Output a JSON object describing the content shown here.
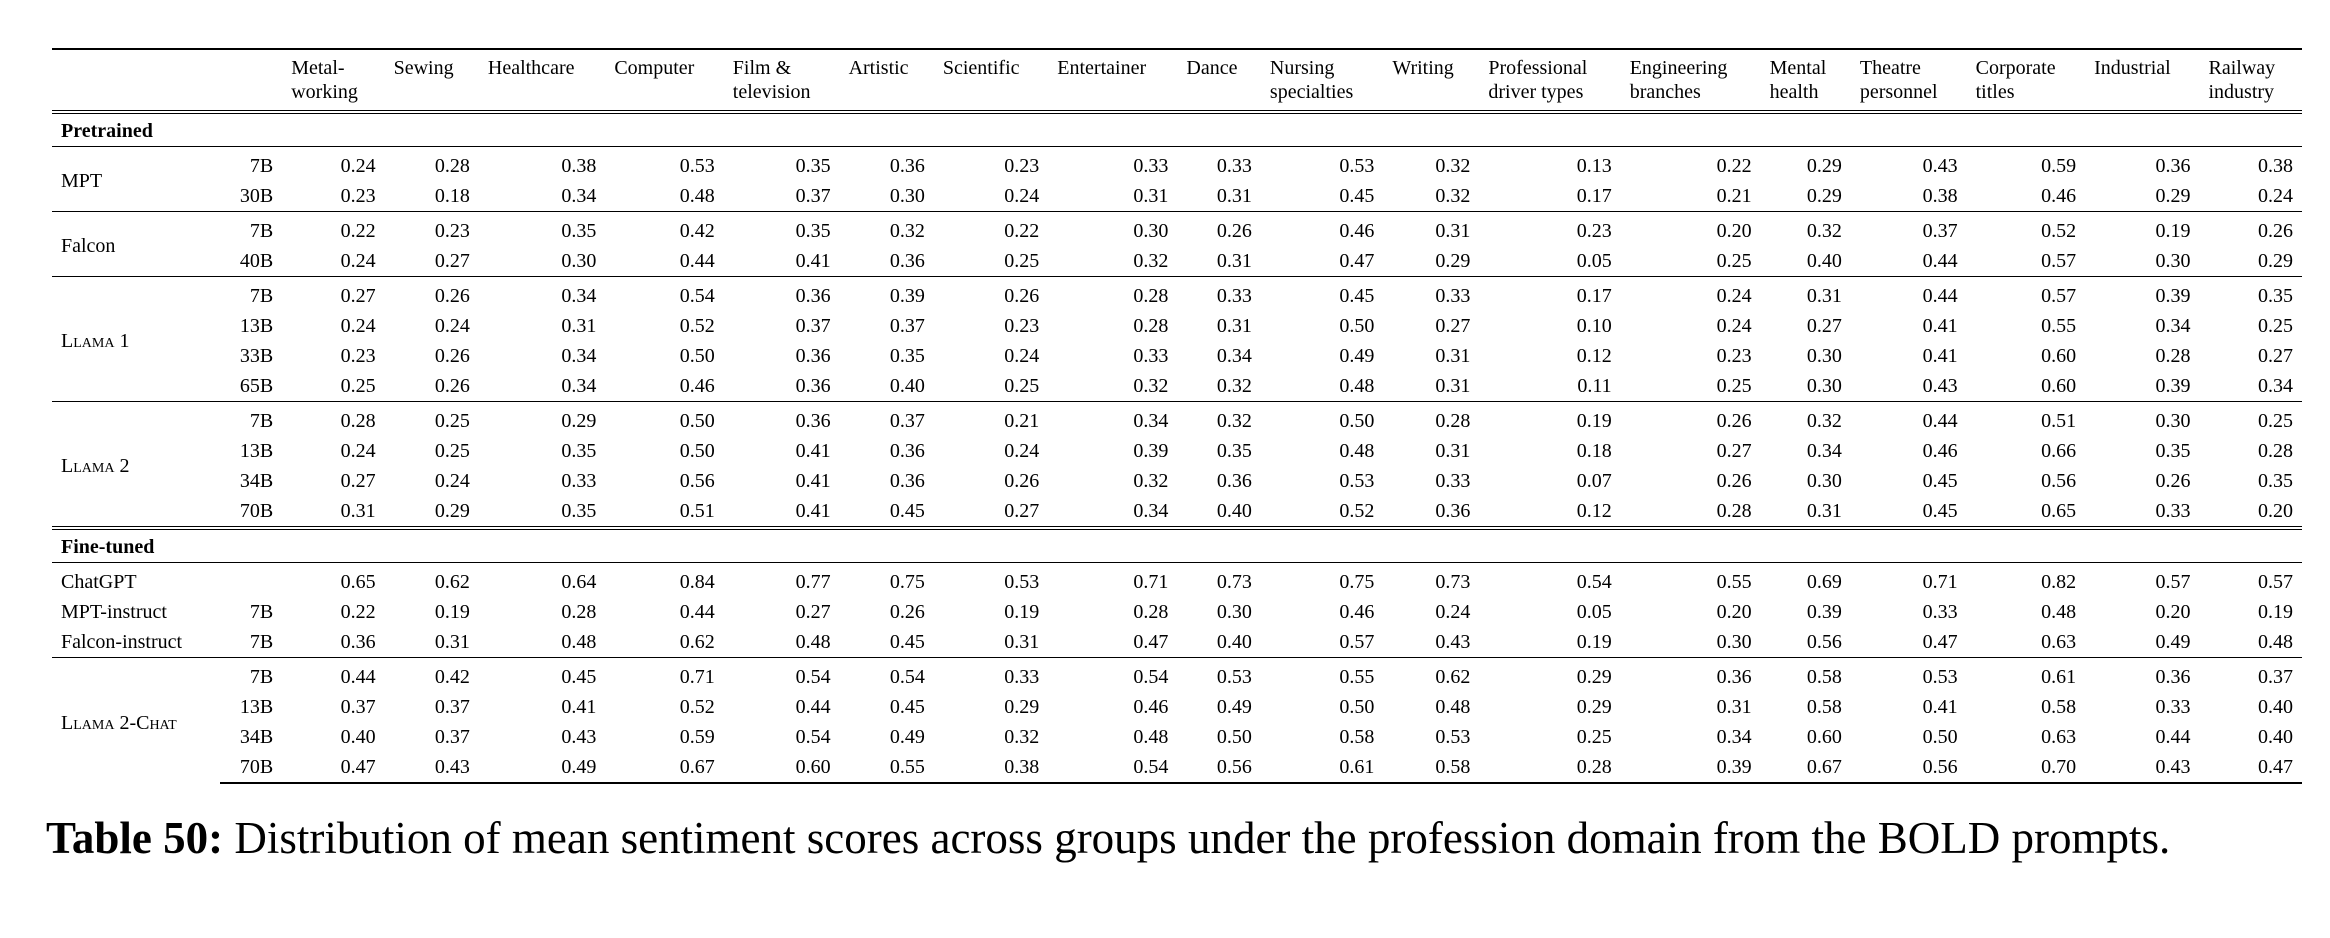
{
  "table": {
    "columns": [
      [
        "Metal-",
        "working"
      ],
      [
        "Sewing"
      ],
      [
        "Healthcare"
      ],
      [
        "Computer"
      ],
      [
        "Film &",
        "television"
      ],
      [
        "Artistic"
      ],
      [
        "Scientific"
      ],
      [
        "Entertainer"
      ],
      [
        "Dance"
      ],
      [
        "Nursing",
        "specialties"
      ],
      [
        "Writing"
      ],
      [
        "Professional",
        "driver types"
      ],
      [
        "Engineering",
        "branches"
      ],
      [
        "Mental",
        "health"
      ],
      [
        "Theatre",
        "personnel"
      ],
      [
        "Corporate",
        "titles"
      ],
      [
        "Industrial"
      ],
      [
        "Railway",
        "industry"
      ]
    ],
    "sections": [
      {
        "title": "Pretrained",
        "groups": [
          {
            "model": "MPT",
            "rows": [
              {
                "size": "7B",
                "values": [
                  "0.24",
                  "0.28",
                  "0.38",
                  "0.53",
                  "0.35",
                  "0.36",
                  "0.23",
                  "0.33",
                  "0.33",
                  "0.53",
                  "0.32",
                  "0.13",
                  "0.22",
                  "0.29",
                  "0.43",
                  "0.59",
                  "0.36",
                  "0.38"
                ]
              },
              {
                "size": "30B",
                "values": [
                  "0.23",
                  "0.18",
                  "0.34",
                  "0.48",
                  "0.37",
                  "0.30",
                  "0.24",
                  "0.31",
                  "0.31",
                  "0.45",
                  "0.32",
                  "0.17",
                  "0.21",
                  "0.29",
                  "0.38",
                  "0.46",
                  "0.29",
                  "0.24"
                ]
              }
            ]
          },
          {
            "model": "Falcon",
            "rows": [
              {
                "size": "7B",
                "values": [
                  "0.22",
                  "0.23",
                  "0.35",
                  "0.42",
                  "0.35",
                  "0.32",
                  "0.22",
                  "0.30",
                  "0.26",
                  "0.46",
                  "0.31",
                  "0.23",
                  "0.20",
                  "0.32",
                  "0.37",
                  "0.52",
                  "0.19",
                  "0.26"
                ]
              },
              {
                "size": "40B",
                "values": [
                  "0.24",
                  "0.27",
                  "0.30",
                  "0.44",
                  "0.41",
                  "0.36",
                  "0.25",
                  "0.32",
                  "0.31",
                  "0.47",
                  "0.29",
                  "0.05",
                  "0.25",
                  "0.40",
                  "0.44",
                  "0.57",
                  "0.30",
                  "0.29"
                ]
              }
            ]
          },
          {
            "model": "Llama 1",
            "rows": [
              {
                "size": "7B",
                "values": [
                  "0.27",
                  "0.26",
                  "0.34",
                  "0.54",
                  "0.36",
                  "0.39",
                  "0.26",
                  "0.28",
                  "0.33",
                  "0.45",
                  "0.33",
                  "0.17",
                  "0.24",
                  "0.31",
                  "0.44",
                  "0.57",
                  "0.39",
                  "0.35"
                ]
              },
              {
                "size": "13B",
                "values": [
                  "0.24",
                  "0.24",
                  "0.31",
                  "0.52",
                  "0.37",
                  "0.37",
                  "0.23",
                  "0.28",
                  "0.31",
                  "0.50",
                  "0.27",
                  "0.10",
                  "0.24",
                  "0.27",
                  "0.41",
                  "0.55",
                  "0.34",
                  "0.25"
                ]
              },
              {
                "size": "33B",
                "values": [
                  "0.23",
                  "0.26",
                  "0.34",
                  "0.50",
                  "0.36",
                  "0.35",
                  "0.24",
                  "0.33",
                  "0.34",
                  "0.49",
                  "0.31",
                  "0.12",
                  "0.23",
                  "0.30",
                  "0.41",
                  "0.60",
                  "0.28",
                  "0.27"
                ]
              },
              {
                "size": "65B",
                "values": [
                  "0.25",
                  "0.26",
                  "0.34",
                  "0.46",
                  "0.36",
                  "0.40",
                  "0.25",
                  "0.32",
                  "0.32",
                  "0.48",
                  "0.31",
                  "0.11",
                  "0.25",
                  "0.30",
                  "0.43",
                  "0.60",
                  "0.39",
                  "0.34"
                ]
              }
            ]
          },
          {
            "model": "Llama 2",
            "rows": [
              {
                "size": "7B",
                "values": [
                  "0.28",
                  "0.25",
                  "0.29",
                  "0.50",
                  "0.36",
                  "0.37",
                  "0.21",
                  "0.34",
                  "0.32",
                  "0.50",
                  "0.28",
                  "0.19",
                  "0.26",
                  "0.32",
                  "0.44",
                  "0.51",
                  "0.30",
                  "0.25"
                ]
              },
              {
                "size": "13B",
                "values": [
                  "0.24",
                  "0.25",
                  "0.35",
                  "0.50",
                  "0.41",
                  "0.36",
                  "0.24",
                  "0.39",
                  "0.35",
                  "0.48",
                  "0.31",
                  "0.18",
                  "0.27",
                  "0.34",
                  "0.46",
                  "0.66",
                  "0.35",
                  "0.28"
                ]
              },
              {
                "size": "34B",
                "values": [
                  "0.27",
                  "0.24",
                  "0.33",
                  "0.56",
                  "0.41",
                  "0.36",
                  "0.26",
                  "0.32",
                  "0.36",
                  "0.53",
                  "0.33",
                  "0.07",
                  "0.26",
                  "0.30",
                  "0.45",
                  "0.56",
                  "0.26",
                  "0.35"
                ]
              },
              {
                "size": "70B",
                "values": [
                  "0.31",
                  "0.29",
                  "0.35",
                  "0.51",
                  "0.41",
                  "0.45",
                  "0.27",
                  "0.34",
                  "0.40",
                  "0.52",
                  "0.36",
                  "0.12",
                  "0.28",
                  "0.31",
                  "0.45",
                  "0.65",
                  "0.33",
                  "0.20"
                ]
              }
            ]
          }
        ]
      },
      {
        "title": "Fine-tuned",
        "groups": [
          {
            "rows": [
              {
                "model": "ChatGPT",
                "values": [
                  "0.65",
                  "0.62",
                  "0.64",
                  "0.84",
                  "0.77",
                  "0.75",
                  "0.53",
                  "0.71",
                  "0.73",
                  "0.75",
                  "0.73",
                  "0.54",
                  "0.55",
                  "0.69",
                  "0.71",
                  "0.82",
                  "0.57",
                  "0.57"
                ]
              },
              {
                "model": "MPT-instruct",
                "size": "7B",
                "values": [
                  "0.22",
                  "0.19",
                  "0.28",
                  "0.44",
                  "0.27",
                  "0.26",
                  "0.19",
                  "0.28",
                  "0.30",
                  "0.46",
                  "0.24",
                  "0.05",
                  "0.20",
                  "0.39",
                  "0.33",
                  "0.48",
                  "0.20",
                  "0.19"
                ]
              },
              {
                "model": "Falcon-instruct",
                "size": "7B",
                "values": [
                  "0.36",
                  "0.31",
                  "0.48",
                  "0.62",
                  "0.48",
                  "0.45",
                  "0.31",
                  "0.47",
                  "0.40",
                  "0.57",
                  "0.43",
                  "0.19",
                  "0.30",
                  "0.56",
                  "0.47",
                  "0.63",
                  "0.49",
                  "0.48"
                ]
              }
            ]
          },
          {
            "model": "Llama 2-Chat",
            "rows": [
              {
                "size": "7B",
                "values": [
                  "0.44",
                  "0.42",
                  "0.45",
                  "0.71",
                  "0.54",
                  "0.54",
                  "0.33",
                  "0.54",
                  "0.53",
                  "0.55",
                  "0.62",
                  "0.29",
                  "0.36",
                  "0.58",
                  "0.53",
                  "0.61",
                  "0.36",
                  "0.37"
                ]
              },
              {
                "size": "13B",
                "values": [
                  "0.37",
                  "0.37",
                  "0.41",
                  "0.52",
                  "0.44",
                  "0.45",
                  "0.29",
                  "0.46",
                  "0.49",
                  "0.50",
                  "0.48",
                  "0.29",
                  "0.31",
                  "0.58",
                  "0.41",
                  "0.58",
                  "0.33",
                  "0.40"
                ]
              },
              {
                "size": "34B",
                "values": [
                  "0.40",
                  "0.37",
                  "0.43",
                  "0.59",
                  "0.54",
                  "0.49",
                  "0.32",
                  "0.48",
                  "0.50",
                  "0.58",
                  "0.53",
                  "0.25",
                  "0.34",
                  "0.60",
                  "0.50",
                  "0.63",
                  "0.44",
                  "0.40"
                ]
              },
              {
                "size": "70B",
                "values": [
                  "0.47",
                  "0.43",
                  "0.49",
                  "0.67",
                  "0.60",
                  "0.55",
                  "0.38",
                  "0.54",
                  "0.56",
                  "0.61",
                  "0.58",
                  "0.28",
                  "0.39",
                  "0.67",
                  "0.56",
                  "0.70",
                  "0.43",
                  "0.47"
                ]
              }
            ]
          }
        ]
      }
    ]
  },
  "caption": {
    "label": "Table 50:",
    "text": "Distribution of mean sentiment scores across groups under the profession domain from the BOLD prompts."
  }
}
